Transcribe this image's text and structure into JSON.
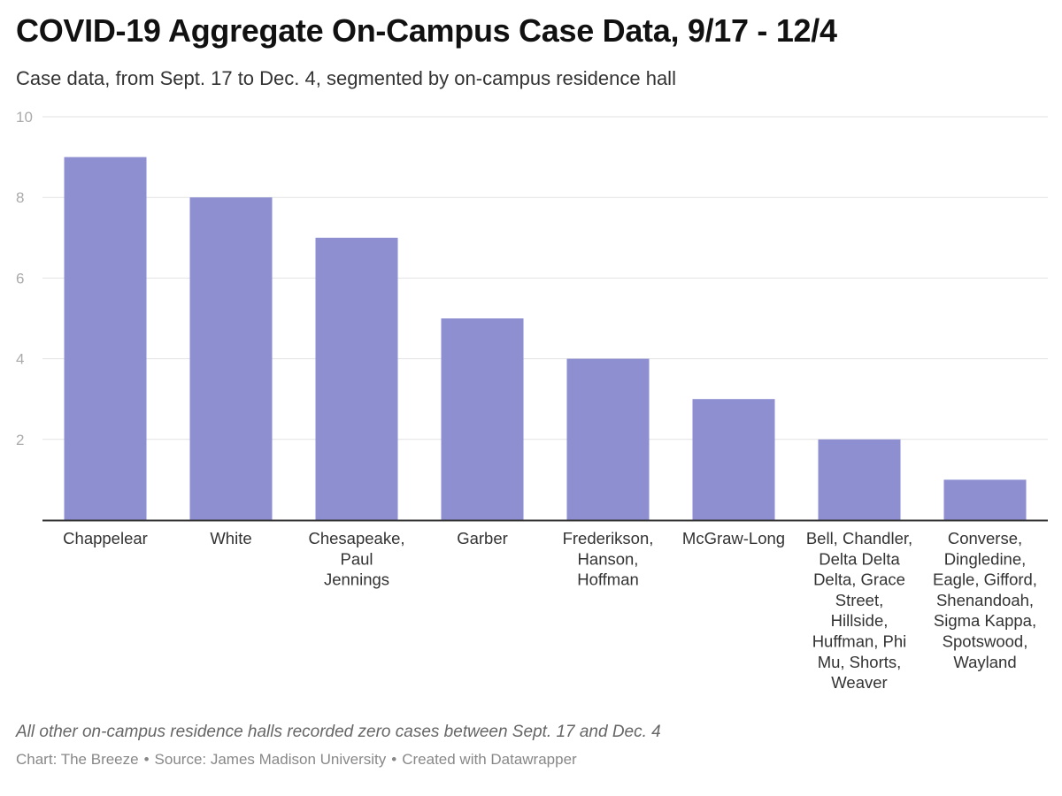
{
  "header": {
    "title": "COVID-19 Aggregate On-Campus Case Data, 9/17 - 12/4",
    "subtitle": "Case data, from Sept. 17 to Dec. 4, segmented by on-campus residence hall"
  },
  "footer": {
    "note": "All other on-campus residence halls recorded zero cases between Sept. 17 and Dec. 4",
    "chart_credit": "Chart: The Breeze",
    "source": "Source: James Madison University",
    "created_with": "Created with Datawrapper",
    "separator": "•"
  },
  "colors": {
    "bar": "#8d8fd1",
    "grid": "#e2e2e2",
    "axis": "#333333",
    "tick_label": "#aaaaaa",
    "category_label": "#333333"
  },
  "chart_data": {
    "type": "bar",
    "title": "COVID-19 Aggregate On-Campus Case Data, 9/17 - 12/4",
    "subtitle": "Case data, from Sept. 17 to Dec. 4, segmented by on-campus residence hall",
    "xlabel": "",
    "ylabel": "",
    "ylim": [
      0,
      10
    ],
    "yticks": [
      2,
      4,
      6,
      8,
      10
    ],
    "grid": true,
    "categories": [
      "Chappelear",
      "White",
      "Chesapeake, Paul Jennings",
      "Garber",
      "Frederikson, Hanson, Hoffman",
      "McGraw-Long",
      "Bell, Chandler, Delta Delta Delta, Grace Street, Hillside, Huffman, Phi Mu, Shorts, Weaver",
      "Converse, Dingledine, Eagle, Gifford, Shenandoah, Sigma Kappa, Spotswood, Wayland"
    ],
    "category_label_lines": [
      [
        "Chappelear"
      ],
      [
        "White"
      ],
      [
        "Chesapeake,",
        "Paul",
        "Jennings"
      ],
      [
        "Garber"
      ],
      [
        "Frederikson,",
        "Hanson,",
        "Hoffman"
      ],
      [
        "McGraw-Long"
      ],
      [
        "Bell, Chandler,",
        "Delta Delta",
        "Delta, Grace",
        "Street,",
        "Hillside,",
        "Huffman, Phi",
        "Mu, Shorts,",
        "Weaver"
      ],
      [
        "Converse,",
        "Dingledine,",
        "Eagle, Gifford,",
        "Shenandoah,",
        "Sigma Kappa,",
        "Spotswood,",
        "Wayland"
      ]
    ],
    "values": [
      9,
      8,
      7,
      5,
      4,
      3,
      2,
      1
    ]
  }
}
